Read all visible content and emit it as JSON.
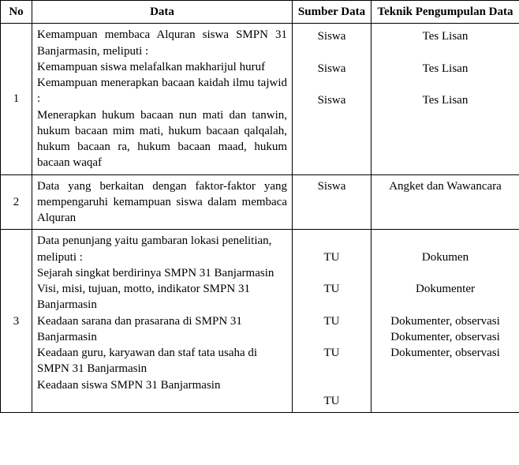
{
  "headers": {
    "no": "No",
    "data": "Data",
    "sumber": "Sumber Data",
    "teknik": "Teknik Pengumpulan Data"
  },
  "rows": [
    {
      "no": "1",
      "data_lines": [
        "Kemampuan membaca Alquran siswa SMPN 31 Banjarmasin, meliputi :",
        "Kemampuan siswa melafalkan makharijul huruf",
        "Kemampuan menerapkan bacaan kaidah ilmu tajwid :",
        "Menerapkan hukum bacaan nun mati dan tanwin, hukum bacaan mim mati, hukum bacaan qalqalah, hukum bacaan ra, hukum bacaan maad, hukum bacaan waqaf"
      ],
      "sumber_lines": [
        "Siswa",
        "",
        "Siswa",
        "",
        "Siswa"
      ],
      "teknik_lines": [
        "Tes Lisan",
        "",
        "Tes Lisan",
        "",
        "Tes Lisan"
      ]
    },
    {
      "no": "2",
      "data_lines": [
        "Data yang berkaitan dengan faktor-faktor yang mempengaruhi kemampuan siswa dalam membaca Alquran"
      ],
      "sumber_lines": [
        "Siswa"
      ],
      "teknik_lines": [
        "Angket dan Wawancara"
      ]
    },
    {
      "no": "3",
      "data_lines": [
        "Data penunjang yaitu gambaran lokasi penelitian, meliputi :",
        "Sejarah singkat berdirinya SMPN 31 Banjarmasin",
        "Visi, misi, tujuan, motto, indikator SMPN 31 Banjarmasin",
        "Keadaan sarana dan prasarana di SMPN 31 Banjarmasin",
        "Keadaan guru, karyawan dan staf tata usaha di SMPN 31 Banjarmasin",
        "Keadaan siswa SMPN 31 Banjarmasin"
      ],
      "sumber_lines": [
        "",
        "TU",
        "",
        "TU",
        "",
        "TU",
        "",
        "TU",
        "",
        "",
        "TU"
      ],
      "teknik_lines": [
        "",
        "Dokumen",
        "",
        "Dokumenter",
        "",
        "Dokumenter, observasi",
        "Dokumenter, observasi",
        "Dokumenter, observasi"
      ]
    }
  ]
}
